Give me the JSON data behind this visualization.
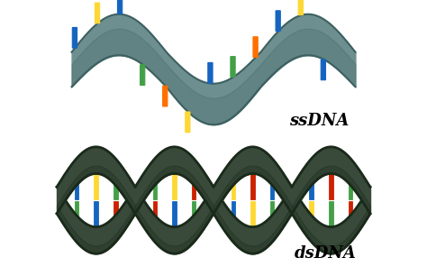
{
  "background_color": "#ffffff",
  "ssdna_label": "ssDNA",
  "dsdna_label": "dsDNA",
  "label_fontsize": 13,
  "label_fontweight": "bold",
  "ssdna_backbone_color": "#6e8f8f",
  "ssdna_backbone_edge": "#3d6060",
  "dsdna_backbone_color": "#3a4a3a",
  "dsdna_backbone_edge": "#1a2a1a",
  "base_colors_ss": [
    "#1565C0",
    "#FDD835",
    "#1565C0",
    "#43A047",
    "#FF6F00",
    "#FDD835",
    "#1565C0",
    "#43A047",
    "#FF6F00",
    "#1565C0",
    "#FDD835",
    "#1565C0"
  ],
  "base_colors_ds1": [
    "#1565C0",
    "#FDD835",
    "#43A047",
    "#CC2200",
    "#1565C0",
    "#43A047",
    "#FDD835",
    "#CC2200"
  ],
  "base_colors_ds2": [
    "#43A047",
    "#1565C0",
    "#CC2200",
    "#43A047",
    "#FDD835",
    "#CC2200",
    "#1565C0",
    "#FDD835"
  ],
  "fig_width": 4.74,
  "fig_height": 2.96,
  "dpi": 100
}
